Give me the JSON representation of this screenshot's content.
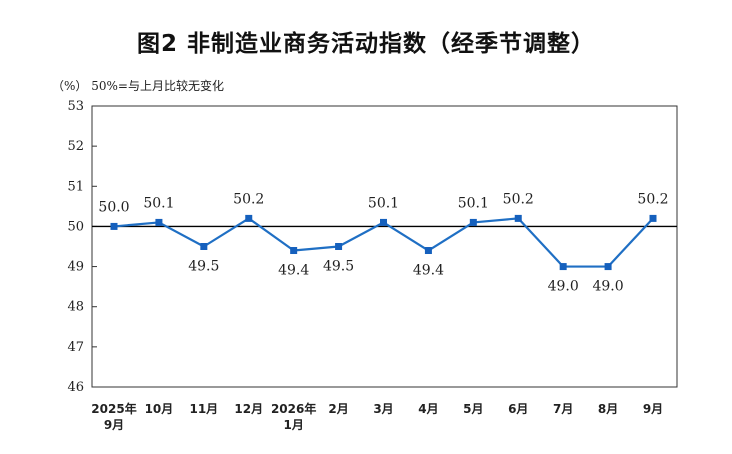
{
  "title": "图2  非制造业商务活动指数（经季节调整）",
  "unit_note": "（%）  50%=与上月比较无变化",
  "chart_data": {
    "type": "line",
    "categories": [
      [
        "2025年",
        "9月"
      ],
      [
        "10月"
      ],
      [
        "11月"
      ],
      [
        "12月"
      ],
      [
        "2026年",
        "1月"
      ],
      [
        "2月"
      ],
      [
        "3月"
      ],
      [
        "4月"
      ],
      [
        "5月"
      ],
      [
        "6月"
      ],
      [
        "7月"
      ],
      [
        "8月"
      ],
      [
        "9月"
      ]
    ],
    "series": [
      {
        "values": [
          50.0,
          50.1,
          49.5,
          50.2,
          49.4,
          49.5,
          50.1,
          49.4,
          50.1,
          50.2,
          49.0,
          49.0,
          50.2
        ]
      }
    ],
    "data_labels": [
      "50.0",
      "50.1",
      "49.5",
      "50.2",
      "49.4",
      "49.5",
      "50.1",
      "49.4",
      "50.1",
      "50.2",
      "49.0",
      "49.0",
      "50.2"
    ],
    "label_position": [
      "above",
      "above",
      "below",
      "above",
      "below",
      "below",
      "above",
      "below",
      "above",
      "above",
      "below",
      "below",
      "above"
    ],
    "ylim": [
      46,
      53
    ],
    "yticks": [
      "46",
      "47",
      "48",
      "49",
      "50",
      "51",
      "52",
      "53"
    ],
    "reference_line": 50,
    "grid": false,
    "colors": {
      "line": "#1f6fc4",
      "marker": "#1560bd",
      "reference": "#000000",
      "axis": "#333333"
    }
  }
}
